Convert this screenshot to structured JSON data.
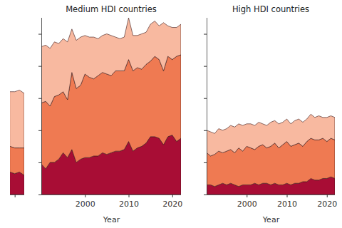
{
  "chart_data": [
    {
      "type": "area",
      "stacked": true,
      "tick_labels": false,
      "x": [
        2019,
        2020,
        2021,
        2022
      ],
      "xlim": [
        2019,
        2022
      ],
      "xticks": [
        2020
      ],
      "ylim": [
        0,
        110
      ],
      "series": [
        {
          "color": "#a80d35",
          "values": [
            14,
            13,
            14,
            12
          ]
        },
        {
          "color": "#ef7a52",
          "values": [
            16,
            16,
            15,
            17
          ]
        },
        {
          "color": "#f8b9a0",
          "values": [
            34,
            35,
            36,
            34
          ]
        }
      ]
    },
    {
      "type": "area",
      "stacked": true,
      "tick_labels": "x",
      "title": "Medium HDI countries",
      "x_label": "Year",
      "x": [
        1990,
        1991,
        1992,
        1993,
        1994,
        1995,
        1996,
        1997,
        1998,
        1999,
        2000,
        2001,
        2002,
        2003,
        2004,
        2005,
        2006,
        2007,
        2008,
        2009,
        2010,
        2011,
        2012,
        2013,
        2014,
        2015,
        2016,
        2017,
        2018,
        2019,
        2020,
        2021,
        2022
      ],
      "xlim": [
        1990,
        2022
      ],
      "xticks": [
        2000,
        2010,
        2020
      ],
      "ylim": [
        0,
        110
      ],
      "yticks": [
        0,
        20,
        40,
        60,
        80,
        100
      ],
      "series": [
        {
          "color": "#a80d35",
          "values": [
            19,
            16,
            20,
            20,
            22,
            26,
            23,
            28,
            20,
            22,
            23,
            23,
            24,
            24,
            26,
            25,
            26,
            27,
            27,
            28,
            33,
            27,
            29,
            30,
            32,
            36,
            36,
            35,
            31,
            36,
            37,
            33,
            35
          ]
        },
        {
          "color": "#ef7a52",
          "values": [
            38,
            42,
            35,
            41,
            40,
            38,
            36,
            48,
            46,
            46,
            52,
            50,
            48,
            50,
            50,
            50,
            48,
            50,
            50,
            49,
            51,
            50,
            50,
            48,
            49,
            47,
            50,
            49,
            46,
            50,
            47,
            53,
            52
          ]
        },
        {
          "color": "#f8b9a0",
          "values": [
            35,
            35,
            36,
            34,
            32,
            33,
            36,
            27,
            30,
            30,
            24,
            25,
            26,
            23,
            23,
            25,
            25,
            21,
            20,
            21,
            26,
            22,
            20,
            22,
            20,
            23,
            22,
            21,
            30,
            19,
            20,
            18,
            19
          ]
        }
      ]
    },
    {
      "type": "area",
      "stacked": true,
      "tick_labels": "x",
      "title": "High HDI countries",
      "x_label": "Year",
      "x": [
        1990,
        1991,
        1992,
        1993,
        1994,
        1995,
        1996,
        1997,
        1998,
        1999,
        2000,
        2001,
        2002,
        2003,
        2004,
        2005,
        2006,
        2007,
        2008,
        2009,
        2010,
        2011,
        2012,
        2013,
        2014,
        2015,
        2016,
        2017,
        2018,
        2019,
        2020,
        2021,
        2022
      ],
      "xlim": [
        1990,
        2022
      ],
      "xticks": [
        2000,
        2010,
        2020
      ],
      "ylim": [
        0,
        110
      ],
      "yticks": [
        0,
        20,
        40,
        60,
        80,
        100
      ],
      "series": [
        {
          "color": "#a80d35",
          "values": [
            6,
            6,
            5,
            6,
            7,
            6,
            7,
            6,
            5,
            6,
            6,
            6,
            7,
            6,
            7,
            7,
            6,
            7,
            6,
            6,
            7,
            6,
            7,
            7,
            8,
            8,
            10,
            9,
            9,
            10,
            10,
            11,
            10
          ]
        },
        {
          "color": "#ef7a52",
          "values": [
            20,
            18,
            20,
            21,
            19,
            21,
            21,
            20,
            24,
            21,
            24,
            23,
            21,
            24,
            24,
            22,
            24,
            25,
            23,
            25,
            26,
            24,
            24,
            25,
            22,
            25,
            25,
            25,
            25,
            25,
            23,
            24,
            24
          ]
        },
        {
          "color": "#f8b9a0",
          "values": [
            14,
            15,
            13,
            14,
            14,
            14,
            15,
            16,
            15,
            16,
            14,
            15,
            15,
            15,
            13,
            14,
            15,
            14,
            15,
            14,
            14,
            14,
            15,
            15,
            15,
            14,
            15,
            14,
            15,
            13,
            15,
            14,
            14
          ]
        }
      ]
    }
  ]
}
